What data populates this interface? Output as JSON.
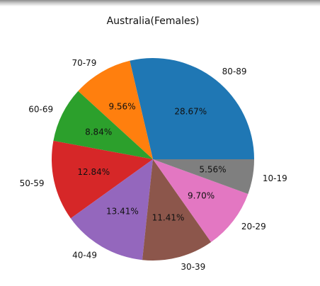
{
  "chart_data": {
    "type": "pie",
    "title": "Australia(Females)",
    "categories": [
      "80-89",
      "70-79",
      "60-69",
      "50-59",
      "40-49",
      "30-39",
      "20-29",
      "10-19"
    ],
    "values": [
      28.67,
      9.56,
      8.84,
      12.84,
      13.41,
      11.41,
      9.7,
      5.56
    ],
    "value_labels": [
      "28.67%",
      "9.56%",
      "8.84%",
      "12.84%",
      "13.41%",
      "11.41%",
      "9.70%",
      "5.56%"
    ],
    "colors": [
      "#1f77b4",
      "#ff7f0e",
      "#2ca02c",
      "#d62728",
      "#9467bd",
      "#8c564b",
      "#e377c2",
      "#7f7f7f"
    ],
    "start_angle_deg": 0,
    "direction": "counterclockwise",
    "legend": "none"
  }
}
